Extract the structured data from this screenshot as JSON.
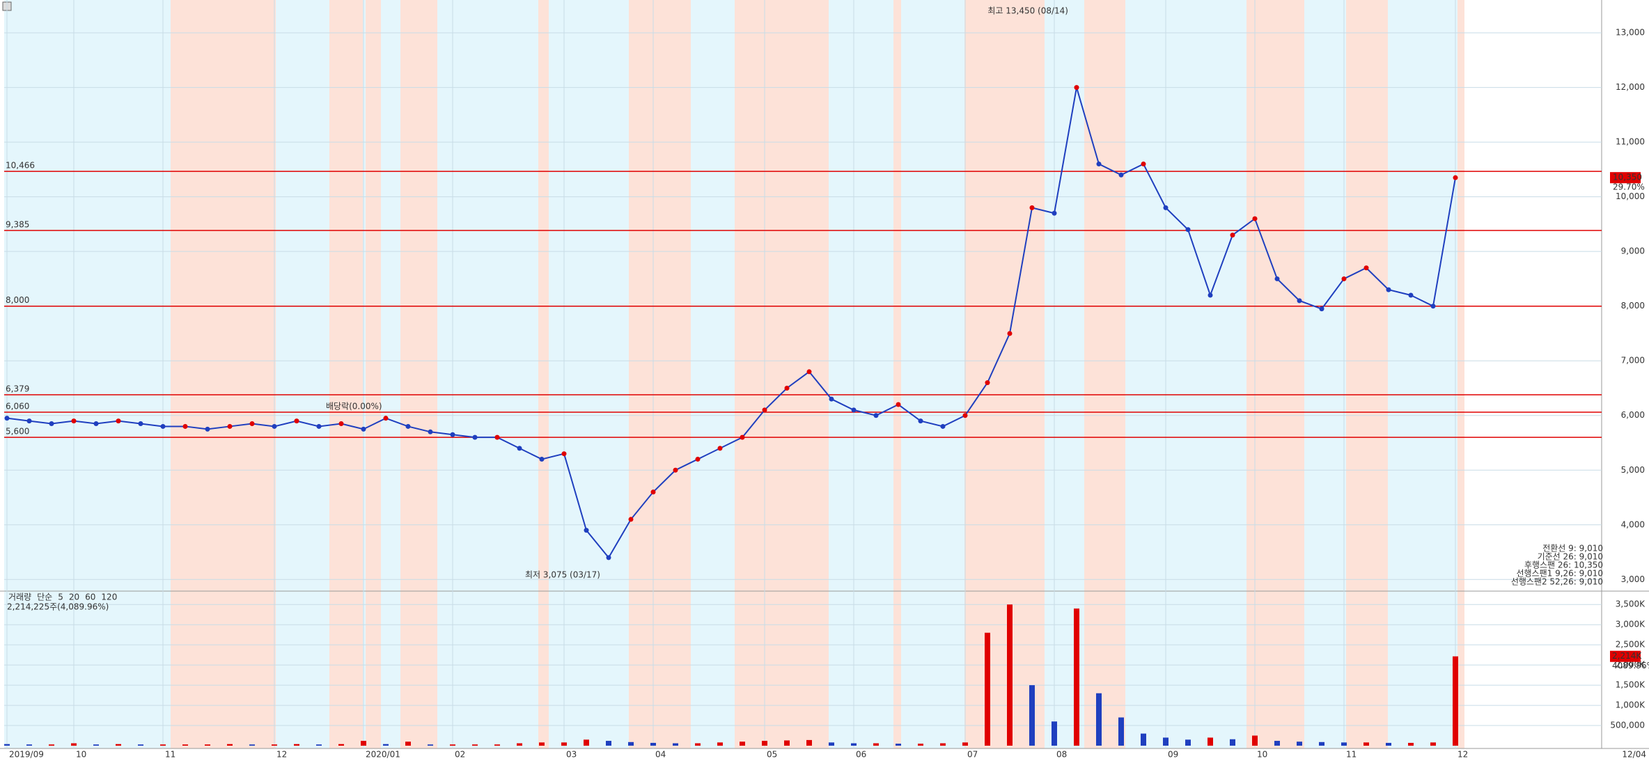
{
  "chart_data": [
    {
      "type": "line",
      "categories": [
        "2019/09",
        null,
        null,
        "10",
        null,
        null,
        null,
        "11",
        null,
        null,
        null,
        null,
        "12",
        null,
        null,
        null,
        "2020/01",
        null,
        null,
        null,
        "02",
        null,
        null,
        null,
        null,
        "03",
        null,
        null,
        null,
        "04",
        null,
        null,
        null,
        null,
        "05",
        null,
        null,
        null,
        "06",
        null,
        null,
        null,
        null,
        "07",
        null,
        null,
        null,
        "08",
        null,
        null,
        null,
        null,
        "09",
        null,
        null,
        null,
        "10",
        null,
        null,
        null,
        "11",
        null,
        null,
        null,
        null,
        "12"
      ],
      "last_date": "12/04",
      "series": [
        {
          "color": "#1f3fbf",
          "values": [
            5950,
            5900,
            5850,
            5900,
            5850,
            5900,
            5850,
            5800,
            5800,
            5750,
            5800,
            5850,
            5800,
            5900,
            5800,
            5850,
            5750,
            5950,
            5800,
            5700,
            5650,
            5600,
            5600,
            5400,
            5200,
            5300,
            3900,
            3400,
            4100,
            4600,
            5000,
            5200,
            5400,
            5600,
            6100,
            6500,
            6800,
            6300,
            6100,
            6000,
            6200,
            5900,
            5800,
            6000,
            6600,
            7500,
            9800,
            9700,
            12000,
            10600,
            10400,
            10600,
            9800,
            9400,
            8200,
            9300,
            9600,
            8500,
            8100,
            7950,
            8500,
            8700,
            8300,
            8200,
            8000,
            10350
          ]
        }
      ],
      "ylim": [
        2800,
        13600
      ],
      "yticks": [
        {
          "value": 3000,
          "label": "3,000"
        },
        {
          "value": 4000,
          "label": "4,000"
        },
        {
          "value": 5000,
          "label": "5,000"
        },
        {
          "value": 6000,
          "label": "6,000"
        },
        {
          "value": 7000,
          "label": "7,000"
        },
        {
          "value": 8000,
          "label": "8,000"
        },
        {
          "value": 9000,
          "label": "9,000"
        },
        {
          "value": 10000,
          "label": "10,000"
        },
        {
          "value": 11000,
          "label": "11,000"
        },
        {
          "value": 12000,
          "label": "12,000"
        },
        {
          "value": 13000,
          "label": "13,000"
        }
      ],
      "hlines": [
        {
          "value": 10466,
          "label": "10,466"
        },
        {
          "value": 9385,
          "label": "9,385"
        },
        {
          "value": 8000,
          "label": "8,000"
        },
        {
          "value": 6379,
          "label": "6,379"
        },
        {
          "value": 6060,
          "label": "6,060"
        },
        {
          "value": 5600,
          "label": "5,600"
        }
      ],
      "hline_color": "#e00000",
      "high_note": "최고 13,450 (08/14)",
      "low_note": "최저 3,075 (03/17)",
      "dividend_note": "배당락(0.00%)",
      "current_price": {
        "value": 10350,
        "label": "10,350"
      },
      "change": "29.70%",
      "legend_texts": [
        "전환선 9: 9,010",
        "기준선 26: 9,010",
        "후행스팬 26: 10,350",
        "선행스팬1 9,26: 9,010",
        "선행스팬2 52,26: 9,010"
      ],
      "grid": true
    },
    {
      "type": "bar",
      "legend": [
        {
          "text": "거래량",
          "color": "#2a8a8a"
        },
        {
          "text": "단순",
          "color": "#c020c0"
        },
        {
          "text": "5",
          "color": "#c020c0"
        },
        {
          "text": "20",
          "color": "#d0a000"
        },
        {
          "text": "60",
          "color": "#208020"
        },
        {
          "text": "120",
          "color": "#888888"
        }
      ],
      "summary": "2,214,225주(4,089.96%)",
      "values": [
        40000,
        30000,
        30000,
        60000,
        30000,
        40000,
        30000,
        30000,
        30000,
        30000,
        40000,
        30000,
        30000,
        40000,
        30000,
        40000,
        120000,
        40000,
        100000,
        30000,
        30000,
        30000,
        30000,
        60000,
        80000,
        80000,
        150000,
        120000,
        90000,
        70000,
        60000,
        60000,
        80000,
        100000,
        120000,
        130000,
        140000,
        80000,
        60000,
        60000,
        50000,
        50000,
        60000,
        80000,
        2800000,
        3500000,
        1500000,
        600000,
        3400000,
        1300000,
        700000,
        300000,
        200000,
        150000,
        200000,
        160000,
        250000,
        120000,
        100000,
        90000,
        80000,
        80000,
        70000,
        70000,
        80000,
        2214225
      ],
      "current": {
        "value": 2214225,
        "label": "2,214K"
      },
      "ratio": "4089.96%",
      "ylim": [
        0,
        3780000
      ],
      "yticks": [
        {
          "value": 500000,
          "label": "500,000"
        },
        {
          "value": 1000000,
          "label": "1,000K"
        },
        {
          "value": 1500000,
          "label": "1,500K"
        },
        {
          "value": 2000000,
          "label": "2,000K"
        },
        {
          "value": 2500000,
          "label": "2,500K"
        },
        {
          "value": 3000000,
          "label": "3,000K"
        },
        {
          "value": 3500000,
          "label": "3,500K"
        }
      ]
    }
  ]
}
